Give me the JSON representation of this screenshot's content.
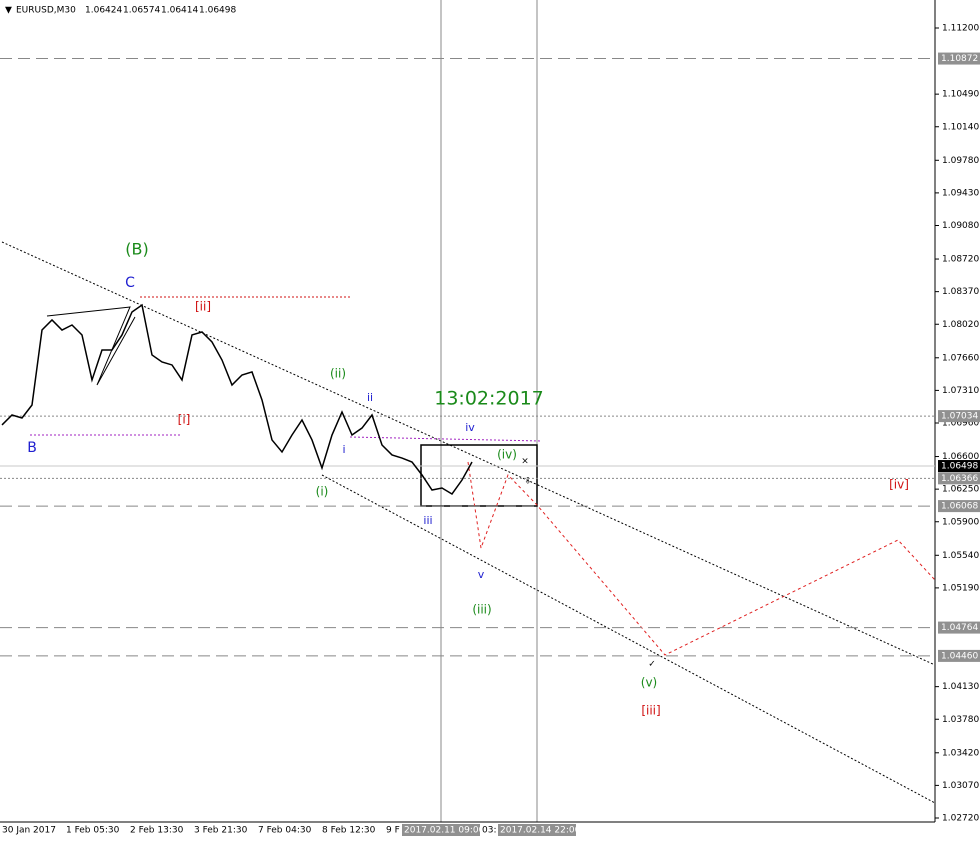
{
  "chart_data": {
    "type": "line",
    "symbol": "EURUSD,M30",
    "ohlc": [
      1.06424,
      1.06574,
      1.06414,
      1.06498
    ],
    "series": [
      {
        "name": "EURUSD",
        "color": "#000000",
        "values": [
          1.06939,
          1.07046,
          1.07014,
          1.07153,
          1.07958,
          1.08066,
          1.07958,
          1.08012,
          1.07905,
          1.07422,
          1.07744,
          1.07744,
          1.07905,
          1.08152,
          1.08227,
          1.0769,
          1.07615,
          1.07583,
          1.07422,
          1.07905,
          1.07937,
          1.0783,
          1.07636,
          1.07368,
          1.07475,
          1.07508,
          1.07207,
          1.06778,
          1.06649,
          1.06831,
          1.06992,
          1.06778,
          1.06477,
          1.06831,
          1.07078,
          1.06831,
          1.06906,
          1.07046,
          1.06724,
          1.06617,
          1.06584,
          1.06541,
          1.06402,
          1.06241,
          1.06262,
          1.06198,
          1.06348,
          1.06541
        ]
      }
    ],
    "ylim": [
      1.0272,
      1.112
    ],
    "yticks": [
      {
        "value": 1.112,
        "label": "1.11200"
      },
      {
        "value": 1.1049,
        "label": "1.10490"
      },
      {
        "value": 1.1014,
        "label": "1.10140"
      },
      {
        "value": 1.0978,
        "label": "1.09780"
      },
      {
        "value": 1.0943,
        "label": "1.09430"
      },
      {
        "value": 1.0908,
        "label": "1.09080"
      },
      {
        "value": 1.0872,
        "label": "1.08720"
      },
      {
        "value": 1.0837,
        "label": "1.08370"
      },
      {
        "value": 1.0802,
        "label": "1.08020"
      },
      {
        "value": 1.0766,
        "label": "1.07660"
      },
      {
        "value": 1.0731,
        "label": "1.07310"
      },
      {
        "value": 1.0696,
        "label": "1.06960"
      },
      {
        "value": 1.066,
        "label": "1.06600"
      },
      {
        "value": 1.0625,
        "label": "1.06250"
      },
      {
        "value": 1.059,
        "label": "1.05900"
      },
      {
        "value": 1.0554,
        "label": "1.05540"
      },
      {
        "value": 1.0519,
        "label": "1.05190"
      },
      {
        "value": 1.0413,
        "label": "1.04130"
      },
      {
        "value": 1.0378,
        "label": "1.03780"
      },
      {
        "value": 1.0342,
        "label": "1.03420"
      },
      {
        "value": 1.0307,
        "label": "1.03070"
      },
      {
        "value": 1.0272,
        "label": "1.02720"
      }
    ],
    "levels": [
      {
        "value": 1.10872,
        "label": "1.10872",
        "style": "dashed"
      },
      {
        "value": 1.07034,
        "label": "1.07034",
        "style": "dotted"
      },
      {
        "value": 1.06498,
        "label": "1.06498",
        "style": "current"
      },
      {
        "value": 1.06366,
        "label": "1.06366",
        "style": "dotted"
      },
      {
        "value": 1.06068,
        "label": "1.06068",
        "style": "dashed"
      },
      {
        "value": 1.04764,
        "label": "1.04764",
        "style": "dashed"
      },
      {
        "value": 1.0446,
        "label": "1.04460",
        "style": "dashed"
      }
    ],
    "xlabels": [
      "30 Jan 2017",
      "1 Feb 05:30",
      "2 Feb 13:30",
      "3 Feb 21:30",
      "7 Feb 04:30",
      "8 Feb 12:30",
      "9 F",
      "2017.02.11 09:00",
      "03:",
      "2017.02.14 22:00"
    ],
    "annotations": [
      {
        "text": "(B)",
        "color": "#1a8a1a"
      },
      {
        "text": "C",
        "color": "#2020d0"
      },
      {
        "text": "[ii]",
        "color": "#d01010"
      },
      {
        "text": "[i]",
        "color": "#d01010"
      },
      {
        "text": "B",
        "color": "#2020d0"
      },
      {
        "text": "(ii)",
        "color": "#1a8a1a"
      },
      {
        "text": "ii",
        "color": "#2020d0"
      },
      {
        "text": "i",
        "color": "#2020d0"
      },
      {
        "text": "(i)",
        "color": "#1a8a1a"
      },
      {
        "text": "13:02:2017",
        "color": "#1a8a1a"
      },
      {
        "text": "iv",
        "color": "#2020d0"
      },
      {
        "text": "(iv)",
        "color": "#1a8a1a"
      },
      {
        "text": "iii",
        "color": "#2020d0"
      },
      {
        "text": "v",
        "color": "#2020d0"
      },
      {
        "text": "(iii)",
        "color": "#1a8a1a"
      },
      {
        "text": "(v)",
        "color": "#1a8a1a"
      },
      {
        "text": "[iii]",
        "color": "#d01010"
      },
      {
        "text": "[iv]",
        "color": "#d01010"
      }
    ]
  }
}
